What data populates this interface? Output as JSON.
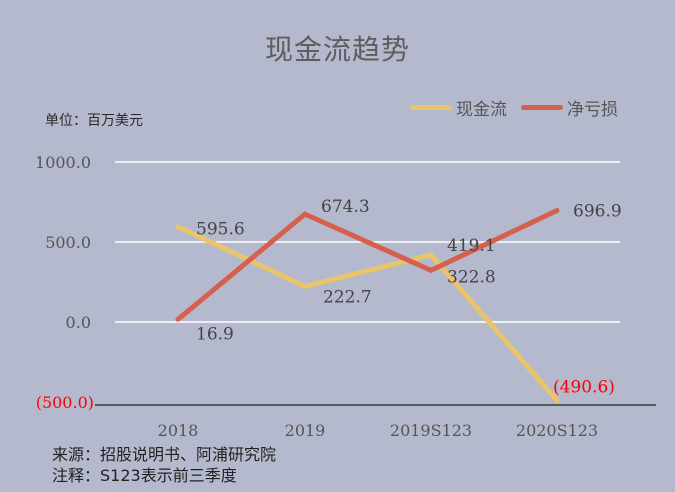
{
  "chart_data": {
    "type": "line",
    "title": "现金流趋势",
    "unit_label": "单位：百万美元",
    "categories": [
      "2018",
      "2019",
      "2019S123",
      "2020S123"
    ],
    "series": [
      {
        "name": "现金流",
        "color": "#e9c46a",
        "values": [
          595.6,
          222.7,
          419.1,
          -490.6
        ],
        "labels": [
          "595.6",
          "222.7",
          "419.1",
          "(490.6)"
        ]
      },
      {
        "name": "净亏损",
        "color": "#d6604d",
        "values": [
          16.9,
          674.3,
          322.8,
          696.9
        ],
        "labels": [
          "16.9",
          "674.3",
          "322.8",
          "696.9"
        ]
      }
    ],
    "yticks": [
      1000,
      500,
      0,
      -500
    ],
    "ytick_labels": [
      "1000.0",
      "500.0",
      "0.0",
      "(500.0)"
    ],
    "ylim": [
      -500,
      1000
    ],
    "grid": true,
    "legend_position": "top-right",
    "xlabel": "",
    "ylabel": ""
  },
  "footnotes": {
    "source": "来源：招股说明书、阿浦研究院",
    "note": "注释：S123表示前三季度"
  },
  "colors": {
    "background": "#b5b9cd",
    "negative_label": "#ff0000",
    "gridline": "#ffffff"
  }
}
